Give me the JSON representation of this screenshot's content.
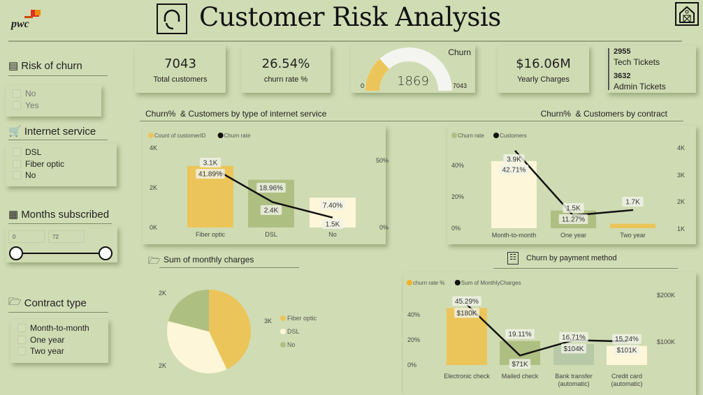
{
  "header": {
    "logo_text": "pwc",
    "title": "Customer Risk Analysis",
    "title_icon": "headset-icon",
    "home_icon": "home-icon"
  },
  "sidebar": {
    "risk": {
      "title": "Risk of churn",
      "options": [
        "No",
        "Yes"
      ]
    },
    "internet": {
      "title": "Internet service",
      "options": [
        "DSL",
        "Fiber optic",
        "No"
      ]
    },
    "months": {
      "title": "Months subscribed",
      "min": "0",
      "max": "72"
    },
    "contract": {
      "title": "Contract type",
      "options": [
        "Month-to-month",
        "One year",
        "Two year"
      ]
    }
  },
  "kpis": {
    "total_customers": {
      "value": "7043",
      "label": "Total customers"
    },
    "churn_rate": {
      "value": "26.54%",
      "label": "churn rate %"
    },
    "gauge": {
      "title": "Churn",
      "value": "1869",
      "min": "0",
      "max": "7043",
      "fraction": 0.2654
    },
    "yearly": {
      "value": "$16.06M",
      "label": "Yearly Charges"
    },
    "tickets": {
      "tech_value": "2955",
      "tech_label": "Tech Tickets",
      "admin_value": "3632",
      "admin_label": "Admin Tickets"
    }
  },
  "sections": {
    "internet": "Churn%  & Customers by type of internet service",
    "contract": "Churn%  & Customers by contract",
    "monthly": "Sum of monthly charges",
    "payment": "Churn by payment method"
  },
  "colors": {
    "yellow": "#ecc55a",
    "green": "#aebf82",
    "cream": "#fdf6d8",
    "sage": "#b7c9a6",
    "line": "#111111"
  },
  "chart_data": [
    {
      "id": "internet",
      "type": "bar+line",
      "categories": [
        "Fiber optic",
        "DSL",
        "No"
      ],
      "legend": [
        "Count of customerID",
        "Churn rate"
      ],
      "bars": {
        "name": "Count of customerID",
        "values": [
          3.1,
          2.4,
          1.5
        ],
        "labels": [
          "3.1K",
          "2.4K",
          "1.5K"
        ]
      },
      "line": {
        "name": "Churn rate",
        "values": [
          41.89,
          18.96,
          7.4
        ],
        "labels": [
          "41.89%",
          "18.96%",
          "7.40%"
        ]
      },
      "left_ticks": [
        "0K",
        "2K",
        "4K"
      ],
      "right_ticks": [
        "0%",
        "50%"
      ],
      "ylim_left": [
        0,
        4
      ],
      "ylim_right": [
        0,
        50
      ]
    },
    {
      "id": "contract",
      "type": "bar+line",
      "categories": [
        "Month-to-month",
        "One year",
        "Two year"
      ],
      "legend": [
        "Churn rate",
        "Customers"
      ],
      "bars": {
        "name": "Churn rate",
        "values": [
          42.71,
          11.27,
          2.83
        ],
        "labels": [
          "42.71%",
          "11.27%",
          ""
        ]
      },
      "line": {
        "name": "Customers",
        "values": [
          3.9,
          1.5,
          1.7
        ],
        "labels": [
          "3.9K",
          "1.5K",
          "1.7K"
        ]
      },
      "left_ticks": [
        "0%",
        "20%",
        "40%"
      ],
      "right_ticks": [
        "1K",
        "2K",
        "3K",
        "4K"
      ],
      "ylim_left": [
        0,
        40
      ],
      "ylim_right": [
        1,
        4
      ]
    },
    {
      "id": "payment",
      "type": "bar+line",
      "categories": [
        "Electronic check",
        "Mailed check",
        "Bank transfer (automatic)",
        "Credit card (automatic)"
      ],
      "legend": [
        "churn rate %",
        "Sum of MonthlyCharges"
      ],
      "bars": {
        "name": "churn rate %",
        "values": [
          45.29,
          19.11,
          16.71,
          15.24
        ],
        "labels": [
          "45.29%",
          "19.11%",
          "16.71%",
          "15.24%"
        ]
      },
      "line": {
        "name": "Sum of MonthlyCharges",
        "values": [
          180,
          71,
          104,
          101
        ],
        "labels": [
          "$180K",
          "$71K",
          "$104K",
          "$101K"
        ]
      },
      "left_ticks": [
        "0%",
        "20%",
        "40%"
      ],
      "right_ticks": [
        "$100K",
        "$200K"
      ],
      "ylim_left": [
        0,
        40
      ],
      "ylim_right": [
        100,
        200
      ]
    },
    {
      "id": "monthly",
      "type": "pie",
      "categories": [
        "Fiber optic",
        "DSL",
        "No"
      ],
      "shares": [
        43,
        36,
        21
      ],
      "labels": [
        "3K",
        "2K",
        "2K"
      ]
    }
  ]
}
